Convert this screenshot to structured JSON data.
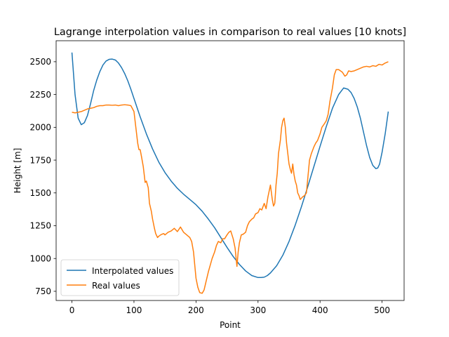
{
  "chart_data": {
    "type": "line",
    "title": "Lagrange interpolation values in comparison to real values [10 knots]",
    "xlabel": "Point",
    "ylabel": "Height [m]",
    "xlim": [
      -25.5,
      535.5
    ],
    "ylim": [
      680,
      2660
    ],
    "x_ticks": [
      0,
      100,
      200,
      300,
      400,
      500
    ],
    "y_ticks": [
      750,
      1000,
      1250,
      1500,
      1750,
      2000,
      2250,
      2500
    ],
    "grid": false,
    "legend_position": "lower-left",
    "series": [
      {
        "name": "Interpolated values",
        "color": "#1f77b4",
        "x": [
          0,
          5,
          10,
          15,
          20,
          25,
          30,
          35,
          40,
          45,
          50,
          55,
          60,
          65,
          70,
          75,
          80,
          85,
          90,
          95,
          100,
          110,
          120,
          130,
          140,
          150,
          160,
          170,
          180,
          190,
          200,
          210,
          220,
          230,
          240,
          250,
          260,
          270,
          280,
          290,
          300,
          305,
          310,
          315,
          320,
          330,
          340,
          350,
          360,
          370,
          380,
          390,
          400,
          410,
          420,
          430,
          438,
          445,
          450,
          455,
          460,
          465,
          470,
          475,
          480,
          485,
          490,
          493,
          496,
          500,
          505,
          510
        ],
        "y": [
          2570,
          2250,
          2070,
          2020,
          2035,
          2090,
          2180,
          2280,
          2360,
          2425,
          2475,
          2505,
          2518,
          2520,
          2513,
          2490,
          2455,
          2410,
          2355,
          2290,
          2220,
          2080,
          1950,
          1835,
          1735,
          1655,
          1590,
          1535,
          1490,
          1450,
          1410,
          1360,
          1300,
          1235,
          1160,
          1085,
          1015,
          955,
          905,
          870,
          855,
          855,
          858,
          870,
          890,
          945,
          1025,
          1130,
          1255,
          1395,
          1545,
          1700,
          1855,
          2005,
          2145,
          2250,
          2300,
          2290,
          2265,
          2220,
          2155,
          2070,
          1965,
          1860,
          1770,
          1710,
          1685,
          1690,
          1720,
          1810,
          1950,
          2120
        ]
      },
      {
        "name": "Real values",
        "color": "#ff7f0e",
        "x": [
          0,
          5,
          10,
          15,
          20,
          25,
          30,
          35,
          40,
          45,
          50,
          55,
          60,
          65,
          70,
          75,
          80,
          85,
          90,
          95,
          100,
          103,
          106,
          108,
          110,
          112,
          115,
          118,
          120,
          123,
          125,
          128,
          130,
          133,
          135,
          138,
          140,
          143,
          145,
          148,
          150,
          155,
          160,
          165,
          170,
          175,
          180,
          185,
          190,
          193,
          196,
          200,
          203,
          206,
          210,
          213,
          216,
          220,
          223,
          226,
          230,
          233,
          236,
          240,
          243,
          246,
          250,
          253,
          256,
          260,
          263,
          266,
          268,
          270,
          273,
          276,
          280,
          283,
          286,
          290,
          293,
          296,
          300,
          303,
          306,
          310,
          313,
          316,
          320,
          323,
          325,
          327,
          329,
          331,
          333,
          336,
          338,
          340,
          342,
          344,
          346,
          348,
          350,
          352,
          354,
          356,
          358,
          360,
          362,
          364,
          366,
          368,
          370,
          372,
          375,
          378,
          380,
          383,
          386,
          390,
          393,
          396,
          400,
          403,
          406,
          410,
          413,
          416,
          420,
          423,
          426,
          430,
          433,
          436,
          440,
          443,
          446,
          450,
          455,
          460,
          465,
          470,
          475,
          480,
          485,
          490,
          495,
          500,
          505,
          510
        ],
        "y": [
          2115,
          2110,
          2115,
          2120,
          2130,
          2140,
          2145,
          2150,
          2160,
          2165,
          2165,
          2170,
          2170,
          2168,
          2170,
          2165,
          2170,
          2172,
          2170,
          2165,
          2120,
          2000,
          1880,
          1830,
          1830,
          1780,
          1700,
          1580,
          1590,
          1540,
          1420,
          1360,
          1300,
          1230,
          1190,
          1160,
          1170,
          1180,
          1185,
          1190,
          1180,
          1200,
          1210,
          1230,
          1205,
          1240,
          1200,
          1180,
          1160,
          1130,
          1050,
          850,
          780,
          740,
          735,
          760,
          820,
          900,
          950,
          1000,
          1050,
          1100,
          1130,
          1120,
          1150,
          1150,
          1180,
          1200,
          1210,
          1150,
          1080,
          940,
          1050,
          1120,
          1180,
          1185,
          1200,
          1250,
          1280,
          1300,
          1310,
          1340,
          1350,
          1380,
          1370,
          1420,
          1380,
          1470,
          1560,
          1450,
          1400,
          1420,
          1560,
          1650,
          1800,
          1900,
          2000,
          2050,
          2070,
          2000,
          1880,
          1800,
          1720,
          1680,
          1650,
          1720,
          1640,
          1590,
          1560,
          1500,
          1480,
          1450,
          1460,
          1470,
          1480,
          1500,
          1600,
          1750,
          1800,
          1850,
          1880,
          1900,
          1950,
          2000,
          2020,
          2050,
          2100,
          2200,
          2300,
          2400,
          2440,
          2440,
          2430,
          2420,
          2390,
          2400,
          2430,
          2425,
          2430,
          2440,
          2450,
          2460,
          2465,
          2460,
          2470,
          2465,
          2480,
          2475,
          2490,
          2500
        ]
      }
    ]
  }
}
